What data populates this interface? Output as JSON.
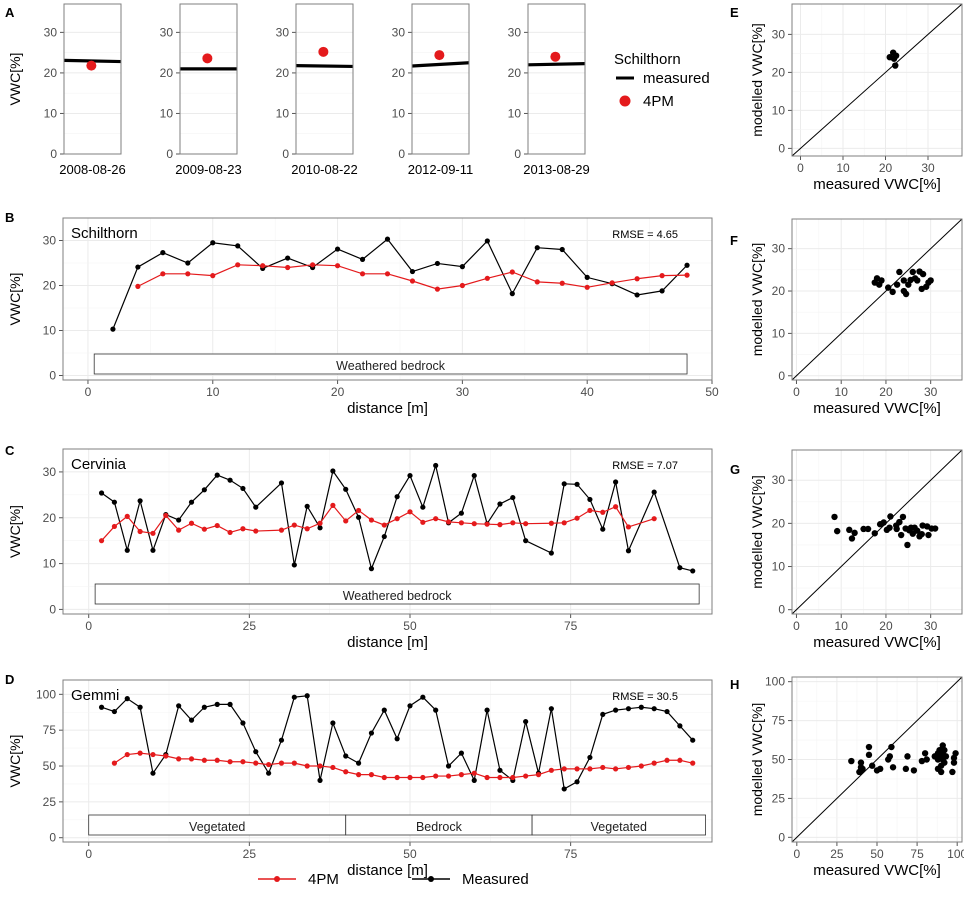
{
  "chart_data": [
    {
      "panel": "A",
      "type": "scatter",
      "ylabel": "VWC[%]",
      "ylim": [
        0,
        37
      ],
      "yticks": [
        0,
        10,
        20,
        30
      ],
      "legend": {
        "title": "Schilthorn",
        "items": [
          "measured",
          "4PM"
        ]
      },
      "facets": [
        {
          "date": "2008-08-26",
          "measured": [
            23.1,
            22.8
          ],
          "pm4": 21.8
        },
        {
          "date": "2009-08-23",
          "measured": [
            21.0,
            21.0
          ],
          "pm4": 23.6
        },
        {
          "date": "2010-08-22",
          "measured": [
            21.8,
            21.6
          ],
          "pm4": 25.2
        },
        {
          "date": "2012-09-11",
          "measured": [
            21.7,
            22.5
          ],
          "pm4": 24.4
        },
        {
          "date": "2013-08-29",
          "measured": [
            22.0,
            22.3
          ],
          "pm4": 24.0
        }
      ]
    },
    {
      "panel": "B",
      "type": "line",
      "site": "Schilthorn",
      "rmse": "RMSE = 4.65",
      "xlabel": "distance [m]",
      "ylabel": "VWC[%]",
      "xlim": [
        -2,
        50
      ],
      "ylim": [
        -1,
        35
      ],
      "xticks": [
        0,
        10,
        20,
        30,
        40,
        50
      ],
      "yticks": [
        0,
        10,
        20,
        30
      ],
      "zones": [
        {
          "label": "Weathered bedrock",
          "from": 0.5,
          "to": 48
        }
      ],
      "measured": {
        "x": [
          2,
          4,
          6,
          8,
          10,
          12,
          14,
          16,
          18,
          20,
          22,
          24,
          26,
          28,
          30,
          32,
          34,
          36,
          38,
          40,
          42,
          44,
          46,
          48
        ],
        "y": [
          10.3,
          24.1,
          27.3,
          25.0,
          29.5,
          28.8,
          23.8,
          26.1,
          24.0,
          28.1,
          25.8,
          30.3,
          23.1,
          24.9,
          24.2,
          29.9,
          18.2,
          28.4,
          28.0,
          21.8,
          20.4,
          17.9,
          18.8,
          24.5
        ]
      },
      "pm4": {
        "x": [
          4,
          6,
          8,
          10,
          12,
          14,
          16,
          18,
          20,
          22,
          24,
          26,
          28,
          30,
          32,
          34,
          36,
          38,
          40,
          42,
          44,
          46,
          48
        ],
        "y": [
          19.8,
          22.6,
          22.6,
          22.2,
          24.6,
          24.4,
          24.0,
          24.6,
          24.4,
          22.6,
          22.6,
          21.0,
          19.2,
          20.0,
          21.6,
          23.0,
          20.8,
          20.5,
          19.6,
          20.6,
          21.5,
          22.2,
          22.3
        ]
      }
    },
    {
      "panel": "C",
      "type": "line",
      "site": "Cervinia",
      "rmse": "RMSE = 7.07",
      "xlabel": "distance [m]",
      "ylabel": "VWC[%]",
      "xlim": [
        -4,
        97
      ],
      "ylim": [
        -1,
        35
      ],
      "xticks": [
        0,
        25,
        50,
        75
      ],
      "yticks": [
        0,
        10,
        20,
        30
      ],
      "zones": [
        {
          "label": "Weathered bedrock",
          "from": 1,
          "to": 95
        }
      ],
      "measured": {
        "x": [
          2,
          4,
          6,
          8,
          10,
          12,
          14,
          16,
          18,
          20,
          22,
          24,
          26,
          30,
          32,
          34,
          36,
          38,
          40,
          42,
          44,
          46,
          48,
          50,
          52,
          54,
          56,
          58,
          60,
          62,
          64,
          66,
          68,
          72,
          74,
          76,
          78,
          80,
          82,
          84,
          88,
          92,
          94
        ],
        "y": [
          25.4,
          23.4,
          12.9,
          23.7,
          12.9,
          20.7,
          19.5,
          23.4,
          26.1,
          29.3,
          28.2,
          26.4,
          22.3,
          27.6,
          9.7,
          22.5,
          17.8,
          30.2,
          26.2,
          20.1,
          8.9,
          15.9,
          24.6,
          29.2,
          22.3,
          31.4,
          18.9,
          21.0,
          29.2,
          18.7,
          23.0,
          24.4,
          15.0,
          12.3,
          27.4,
          27.3,
          24.0,
          17.5,
          27.8,
          12.8,
          25.6,
          9.1,
          8.4
        ]
      },
      "pm4": {
        "x": [
          2,
          4,
          6,
          8,
          10,
          12,
          14,
          16,
          18,
          20,
          22,
          24,
          26,
          30,
          32,
          34,
          36,
          38,
          40,
          42,
          44,
          46,
          48,
          50,
          52,
          54,
          56,
          58,
          60,
          62,
          64,
          66,
          68,
          72,
          74,
          76,
          78,
          80,
          82,
          84,
          88
        ],
        "y": [
          15.0,
          18.1,
          20.3,
          17.0,
          16.6,
          20.5,
          17.3,
          18.8,
          17.5,
          18.3,
          16.8,
          17.6,
          17.1,
          17.3,
          18.4,
          17.6,
          18.8,
          22.7,
          19.3,
          21.6,
          19.5,
          18.4,
          19.8,
          21.3,
          19.0,
          19.8,
          19.1,
          18.9,
          18.7,
          18.6,
          18.5,
          18.9,
          18.7,
          18.8,
          18.9,
          19.9,
          21.6,
          21.2,
          22.4,
          18.0,
          19.8
        ]
      }
    },
    {
      "panel": "D",
      "type": "line",
      "site": "Gemmi",
      "rmse": "RMSE = 30.5",
      "xlabel": "distance [m]",
      "ylabel": "VWC[%]",
      "xlim": [
        -4,
        97
      ],
      "ylim": [
        -3,
        110
      ],
      "xticks": [
        0,
        25,
        50,
        75
      ],
      "yticks": [
        0,
        25,
        50,
        75,
        100
      ],
      "zones": [
        {
          "label": "Vegetated",
          "from": 0,
          "to": 40
        },
        {
          "label": "Bedrock",
          "from": 40,
          "to": 69
        },
        {
          "label": "Vegetated",
          "from": 69,
          "to": 96
        }
      ],
      "measured": {
        "x": [
          2,
          4,
          6,
          8,
          10,
          12,
          14,
          16,
          18,
          20,
          22,
          24,
          26,
          28,
          30,
          32,
          34,
          36,
          38,
          40,
          42,
          44,
          46,
          48,
          50,
          52,
          54,
          56,
          58,
          60,
          62,
          64,
          66,
          68,
          70,
          72,
          74,
          76,
          78,
          80,
          82,
          84,
          86,
          88,
          90,
          92,
          94
        ],
        "y": [
          91,
          88,
          97,
          91,
          45,
          58,
          92,
          82,
          91,
          93,
          93,
          80,
          60,
          45,
          68,
          98,
          99,
          40,
          80,
          57,
          52,
          73,
          89,
          69,
          92,
          98,
          89,
          50,
          59,
          40,
          89,
          47,
          40,
          81,
          45,
          90,
          34,
          39,
          56,
          86,
          89,
          90,
          91,
          90,
          88,
          78,
          68
        ]
      },
      "pm4": {
        "x": [
          4,
          6,
          8,
          10,
          12,
          14,
          16,
          18,
          20,
          22,
          24,
          26,
          28,
          30,
          32,
          34,
          36,
          38,
          40,
          42,
          44,
          46,
          48,
          50,
          52,
          54,
          56,
          58,
          60,
          62,
          64,
          66,
          68,
          70,
          72,
          74,
          76,
          78,
          80,
          82,
          84,
          86,
          88,
          90,
          92,
          94
        ],
        "y": [
          52,
          58,
          59,
          58,
          57,
          55,
          55,
          54,
          54,
          53,
          53,
          52,
          51,
          52,
          52,
          50,
          50,
          49,
          46,
          44,
          44,
          42,
          42,
          42,
          42,
          43,
          43,
          44,
          45,
          42,
          42,
          42,
          43,
          44,
          47,
          48,
          48,
          48,
          49,
          48,
          49,
          50,
          52,
          54,
          54,
          52
        ]
      }
    },
    {
      "panel": "E",
      "type": "scatter",
      "xlabel": "measured VWC[%]",
      "ylabel": "modelled VWC[%]",
      "xlim": [
        -2,
        38
      ],
      "ylim": [
        -2,
        38
      ],
      "xticks": [
        0,
        10,
        20,
        30
      ],
      "yticks": [
        0,
        10,
        20,
        30
      ],
      "x": [
        21.0,
        21.8,
        22.0,
        22.5,
        22.3
      ],
      "y": [
        24.0,
        25.2,
        23.6,
        24.4,
        21.8
      ]
    },
    {
      "panel": "F",
      "type": "scatter",
      "xlabel": "measured VWC[%]",
      "ylabel": "modelled VWC[%]",
      "xlim": [
        -1,
        37
      ],
      "ylim": [
        -1,
        37
      ],
      "xticks": [
        0,
        10,
        20,
        30
      ],
      "yticks": [
        0,
        10,
        20,
        30
      ],
      "x": [
        17.5,
        18.0,
        18.5,
        19.0,
        20.5,
        21.5,
        22.5,
        23.0,
        24.0,
        24.0,
        24.5,
        25.0,
        25.5,
        26.0,
        26.5,
        27.0,
        27.5,
        28.0,
        28.3,
        29.0,
        29.5,
        30.0
      ],
      "y": [
        22.0,
        23.0,
        21.5,
        22.5,
        20.8,
        19.8,
        21.5,
        24.5,
        20.0,
        22.5,
        19.3,
        21.5,
        22.6,
        24.5,
        23.0,
        22.5,
        24.6,
        20.5,
        24.0,
        21.0,
        22.0,
        22.5
      ]
    },
    {
      "panel": "G",
      "type": "scatter",
      "xlabel": "measured VWC[%]",
      "ylabel": "modelled VWC[%]",
      "xlim": [
        -1,
        37
      ],
      "ylim": [
        -1,
        37
      ],
      "xticks": [
        0,
        10,
        20,
        30
      ],
      "yticks": [
        0,
        10,
        20,
        30
      ],
      "x": [
        8.5,
        9.1,
        11.8,
        12.4,
        13.0,
        15.0,
        16.0,
        17.5,
        18.7,
        19.5,
        20.2,
        20.8,
        21.0,
        22.3,
        22.4,
        23.0,
        23.4,
        23.8,
        24.4,
        24.8,
        25.2,
        25.6,
        26.0,
        26.4,
        27.0,
        27.5,
        28.0,
        28.2,
        29.2,
        29.5,
        30.2,
        31.0
      ],
      "y": [
        21.5,
        18.2,
        18.5,
        16.5,
        17.8,
        18.7,
        18.7,
        17.7,
        19.8,
        20.2,
        18.5,
        19.0,
        21.6,
        19.5,
        18.7,
        20.3,
        17.3,
        21.5,
        18.8,
        15.0,
        18.4,
        19.0,
        17.6,
        19.0,
        18.3,
        17.0,
        17.5,
        19.5,
        19.3,
        17.3,
        18.8,
        18.8
      ]
    },
    {
      "panel": "H",
      "type": "scatter",
      "xlabel": "measured VWC[%]",
      "ylabel": "modelled VWC[%]",
      "xlim": [
        -3,
        103
      ],
      "ylim": [
        -3,
        103
      ],
      "xticks": [
        0,
        25,
        50,
        75,
        100
      ],
      "yticks": [
        0,
        25,
        50,
        75,
        100
      ],
      "x": [
        34,
        39,
        40,
        40,
        41,
        45,
        45,
        47,
        50,
        52,
        57,
        58,
        59,
        60,
        68,
        69,
        73,
        78,
        80,
        81,
        86,
        88,
        88,
        89,
        89,
        90,
        90,
        90,
        91,
        91,
        91,
        92,
        92,
        93,
        97,
        98,
        98,
        99,
        91,
        88,
        40
      ],
      "y": [
        49,
        42,
        43,
        48,
        44,
        53,
        58,
        46,
        43,
        44,
        50,
        52,
        58,
        45,
        44,
        52,
        43,
        49,
        54,
        50,
        52,
        50,
        54,
        55,
        56,
        42,
        46,
        52,
        50,
        54,
        57,
        48,
        56,
        52,
        42,
        48,
        51,
        54,
        59,
        44,
        45
      ]
    }
  ],
  "legend": {
    "items": [
      "4PM",
      "Measured"
    ]
  },
  "colors": {
    "pm4": "#e41a1c",
    "measured": "#000000",
    "grid": "#ebebeb",
    "frame": "#7f7f7f"
  }
}
